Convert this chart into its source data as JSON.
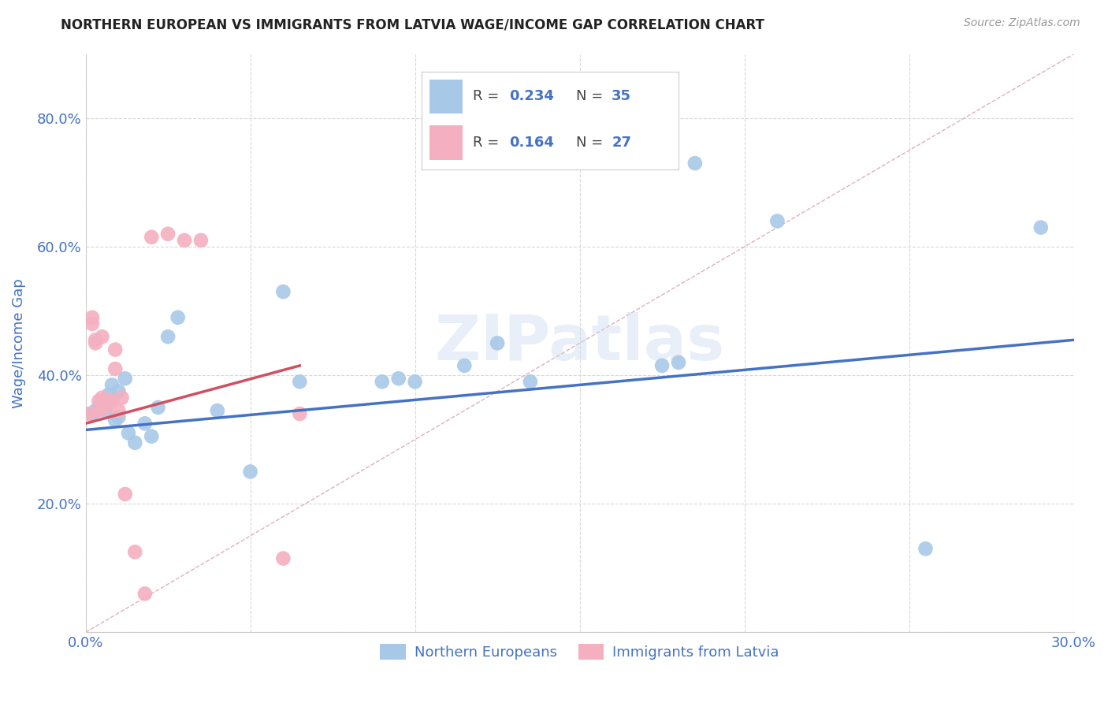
{
  "title": "NORTHERN EUROPEAN VS IMMIGRANTS FROM LATVIA WAGE/INCOME GAP CORRELATION CHART",
  "source": "Source: ZipAtlas.com",
  "ylabel": "Wage/Income Gap",
  "x_min": 0.0,
  "x_max": 0.3,
  "y_min": 0.0,
  "y_max": 0.9,
  "x_ticks": [
    0.0,
    0.05,
    0.1,
    0.15,
    0.2,
    0.25,
    0.3
  ],
  "x_tick_labels": [
    "0.0%",
    "",
    "",
    "",
    "",
    "",
    "30.0%"
  ],
  "y_ticks": [
    0.0,
    0.2,
    0.4,
    0.6,
    0.8
  ],
  "y_tick_labels": [
    "",
    "20.0%",
    "40.0%",
    "60.0%",
    "80.0%"
  ],
  "blue_color": "#a8c8e8",
  "pink_color": "#f4b0c0",
  "blue_line_color": "#4472c4",
  "pink_line_color": "#d05060",
  "diag_line_color": "#e0b0b8",
  "grid_color": "#d8d8d8",
  "text_color": "#4472c4",
  "axis_color": "#cccccc",
  "legend_r_blue": "0.234",
  "legend_n_blue": "35",
  "legend_r_pink": "0.164",
  "legend_n_pink": "27",
  "blue_scatter_x": [
    0.002,
    0.003,
    0.004,
    0.005,
    0.005,
    0.006,
    0.007,
    0.008,
    0.009,
    0.01,
    0.01,
    0.012,
    0.013,
    0.015,
    0.018,
    0.02,
    0.022,
    0.025,
    0.028,
    0.04,
    0.05,
    0.06,
    0.065,
    0.09,
    0.095,
    0.1,
    0.115,
    0.125,
    0.135,
    0.175,
    0.18,
    0.185,
    0.21,
    0.255,
    0.29
  ],
  "blue_scatter_y": [
    0.34,
    0.345,
    0.35,
    0.355,
    0.36,
    0.345,
    0.37,
    0.385,
    0.33,
    0.335,
    0.375,
    0.395,
    0.31,
    0.295,
    0.325,
    0.305,
    0.35,
    0.46,
    0.49,
    0.345,
    0.25,
    0.53,
    0.39,
    0.39,
    0.395,
    0.39,
    0.415,
    0.45,
    0.39,
    0.415,
    0.42,
    0.73,
    0.64,
    0.13,
    0.63
  ],
  "pink_scatter_x": [
    0.001,
    0.002,
    0.002,
    0.003,
    0.003,
    0.004,
    0.004,
    0.005,
    0.005,
    0.005,
    0.006,
    0.006,
    0.007,
    0.008,
    0.009,
    0.009,
    0.01,
    0.011,
    0.012,
    0.015,
    0.018,
    0.02,
    0.025,
    0.03,
    0.035,
    0.06,
    0.065
  ],
  "pink_scatter_y": [
    0.34,
    0.48,
    0.49,
    0.45,
    0.455,
    0.345,
    0.36,
    0.35,
    0.365,
    0.46,
    0.35,
    0.355,
    0.36,
    0.36,
    0.41,
    0.44,
    0.345,
    0.365,
    0.215,
    0.125,
    0.06,
    0.615,
    0.62,
    0.61,
    0.61,
    0.115,
    0.34
  ],
  "blue_line_x": [
    0.0,
    0.3
  ],
  "blue_line_y": [
    0.315,
    0.455
  ],
  "pink_line_x": [
    0.0,
    0.065
  ],
  "pink_line_y": [
    0.325,
    0.415
  ],
  "diag_line_x": [
    0.0,
    0.3
  ],
  "diag_line_y": [
    0.0,
    0.9
  ],
  "watermark": "ZIPatlas",
  "background_color": "#ffffff",
  "scatter_size": 180,
  "title_fontsize": 12,
  "tick_fontsize": 13,
  "label_fontsize": 13
}
